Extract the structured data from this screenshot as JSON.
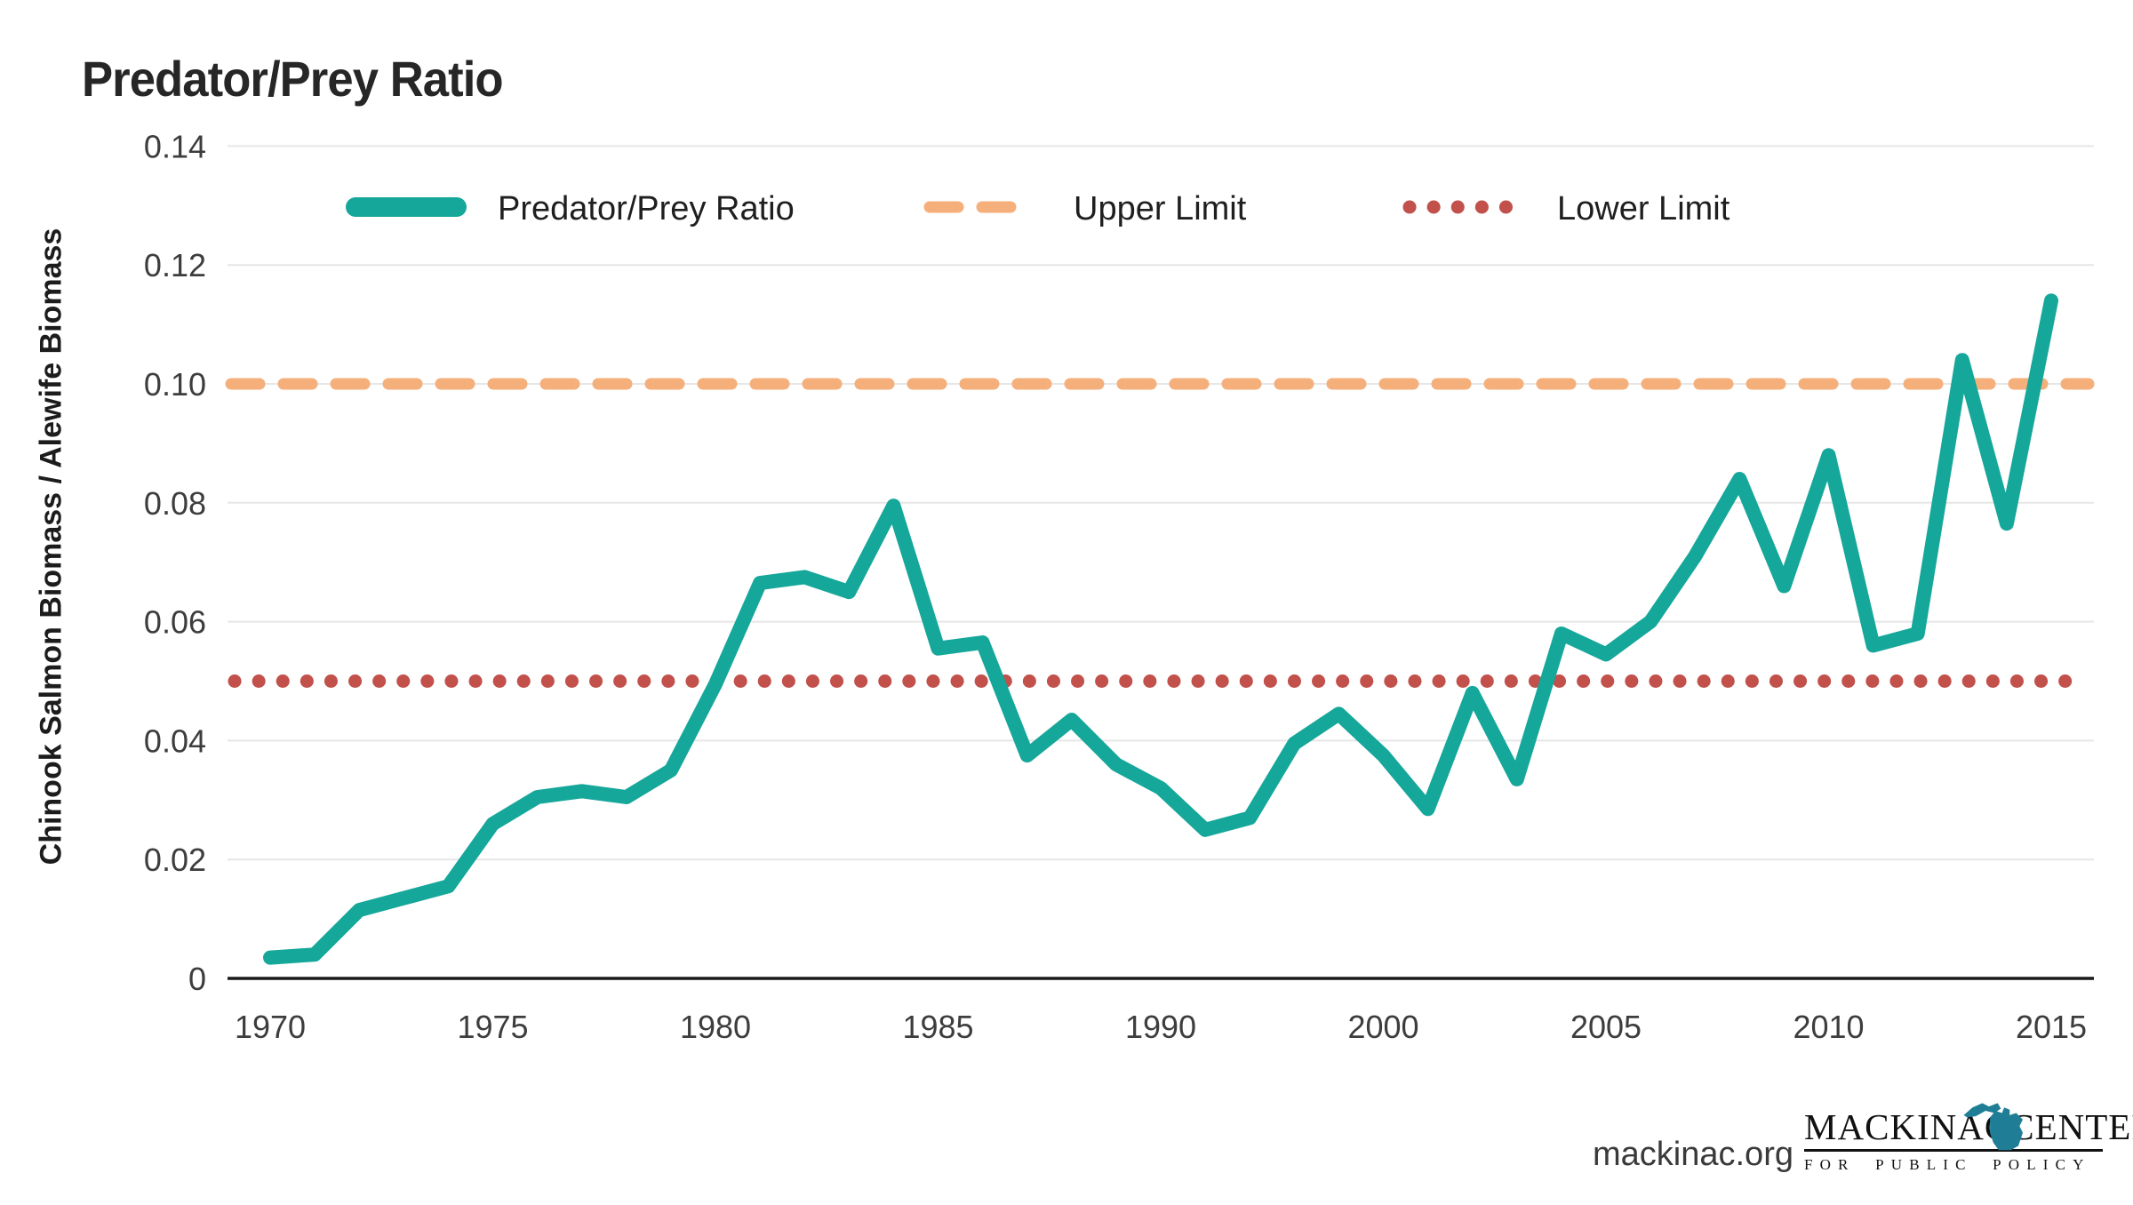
{
  "legend": {
    "items": [
      {
        "label": "Predator/Prey Ratio",
        "marker": "teal-solid-line"
      },
      {
        "label": "Upper Limit",
        "marker": "orange-dashed-line"
      },
      {
        "label": "Lower Limit",
        "marker": "red-dotted-line"
      }
    ]
  },
  "footer": {
    "site": "mackinac.org",
    "logo": {
      "word1": "MACKINAC",
      "word2": "CENTER",
      "subtitle": "FOR PUBLIC POLICY",
      "icon": "michigan-state-icon"
    }
  },
  "colors": {
    "series_teal": "#15A79A",
    "upper_limit_orange": "#F5AF7B",
    "lower_limit_red": "#C2504B",
    "michigan_icon_teal": "#1F7E95"
  },
  "chart_data": {
    "type": "line",
    "title": "Predator/Prey Ratio",
    "ylabel": "Chinook Salmon Biomass / Alewife Biomass",
    "xlabel": "",
    "ylim": [
      0,
      0.14
    ],
    "yticks": [
      0,
      0.02,
      0.04,
      0.06,
      0.08,
      0.1,
      0.12,
      0.14
    ],
    "xticks": [
      "1970",
      "1975",
      "1980",
      "1985",
      "1990",
      "2000",
      "2005",
      "2010",
      "2015"
    ],
    "grid": "horizontal-only",
    "legend_position": "top-inside",
    "upper_limit": 0.1,
    "lower_limit": 0.05,
    "categories": [
      "1970",
      "1971",
      "1972",
      "1973",
      "1974",
      "1975",
      "1976",
      "1977",
      "1978",
      "1979",
      "1980",
      "1981",
      "1982",
      "1983",
      "1984",
      "1985",
      "1986",
      "1987",
      "1988",
      "1989",
      "1990",
      "1992",
      "1994",
      "1996",
      "1998",
      "2000",
      "2001",
      "2002",
      "2003",
      "2004",
      "2005",
      "2006",
      "2007",
      "2008",
      "2009",
      "2010",
      "2011",
      "2012",
      "2013",
      "2014",
      "2015"
    ],
    "series": [
      {
        "name": "Predator/Prey Ratio",
        "values": [
          0.0035,
          0.004,
          0.0115,
          0.0135,
          0.0155,
          0.026,
          0.0305,
          0.0315,
          0.0305,
          0.035,
          0.0495,
          0.0665,
          0.0675,
          0.065,
          0.0795,
          0.0555,
          0.0565,
          0.0375,
          0.0435,
          0.036,
          0.032,
          0.025,
          0.027,
          0.0395,
          0.0445,
          0.0375,
          0.0285,
          0.048,
          0.0335,
          0.058,
          0.0545,
          0.06,
          0.071,
          0.084,
          0.066,
          0.088,
          0.056,
          0.058,
          0.104,
          0.0765,
          0.114
        ]
      }
    ]
  }
}
